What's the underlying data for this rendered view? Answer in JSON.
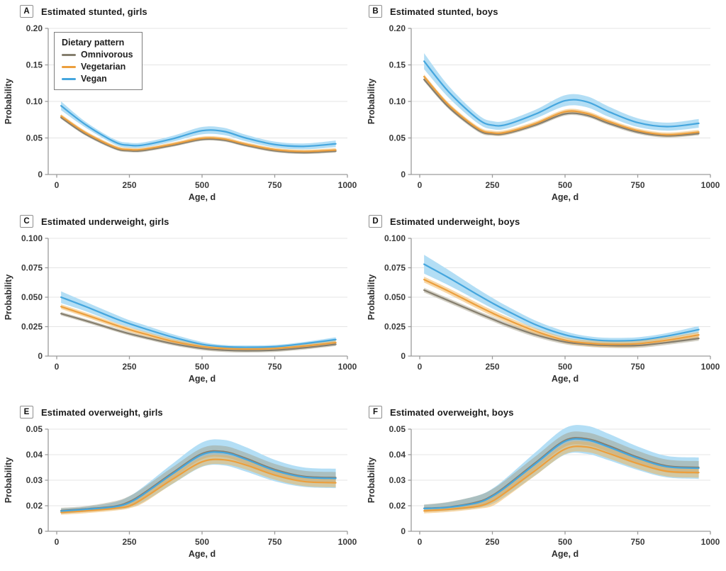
{
  "legend": {
    "title": "Dietary pattern",
    "items": [
      {
        "label": "Omnivorous",
        "color": "#857E6E"
      },
      {
        "label": "Vegetarian",
        "color": "#EC9F3D"
      },
      {
        "label": "Vegan",
        "color": "#45A6DE"
      }
    ]
  },
  "colors": {
    "omnivorous_line": "#857E6E",
    "omnivorous_band": "rgba(160,152,128,0.45)",
    "vegetarian_line": "#EC9F3D",
    "vegetarian_band": "rgba(242,178,82,0.5)",
    "vegan_line": "#45A6DE",
    "vegan_band": "#B3DEF5",
    "axis": "#9c9c9c",
    "grid": "#e4e4e4"
  },
  "chart_data": [
    {
      "letter": "A",
      "title": "Estimated stunted, girls",
      "type": "line",
      "xlabel": "Age, d",
      "ylabel": "Probability",
      "xlim": [
        0,
        1000
      ],
      "xticks": [
        0,
        250,
        500,
        750,
        1000
      ],
      "xtick_labels": [
        "0",
        "250",
        "500",
        "750",
        "1000"
      ],
      "yticks": [
        0,
        0.05,
        0.1,
        0.15,
        0.2
      ],
      "ytick_labels": [
        "0",
        "0.05",
        "0.10",
        "0.15",
        "0.20"
      ],
      "x": [
        15,
        100,
        200,
        250,
        300,
        400,
        500,
        575,
        650,
        750,
        850,
        960
      ],
      "series": [
        {
          "name": "Omnivorous",
          "y": [
            0.078,
            0.055,
            0.036,
            0.0325,
            0.033,
            0.04,
            0.048,
            0.047,
            0.04,
            0.0325,
            0.03,
            0.032
          ],
          "ci": 0.002
        },
        {
          "name": "Vegetarian",
          "y": [
            0.08,
            0.057,
            0.0375,
            0.034,
            0.0345,
            0.0415,
            0.0495,
            0.0485,
            0.0415,
            0.034,
            0.0315,
            0.0335
          ],
          "ci": 0.0025
        },
        {
          "name": "Vegan",
          "y": [
            0.094,
            0.068,
            0.0445,
            0.04,
            0.0405,
            0.049,
            0.06,
            0.059,
            0.05,
            0.041,
            0.0385,
            0.042
          ],
          "ci": [
            0.006,
            0.004,
            0.0035,
            0.0035,
            0.0035,
            0.004,
            0.005,
            0.005,
            0.0045,
            0.004,
            0.004,
            0.0045
          ]
        }
      ],
      "legend_position": "upper-left"
    },
    {
      "letter": "B",
      "title": "Estimated stunted, boys",
      "type": "line",
      "xlabel": "Age, d",
      "ylabel": "Probability",
      "xlim": [
        0,
        1000
      ],
      "xticks": [
        0,
        250,
        500,
        750,
        1000
      ],
      "xtick_labels": [
        "0",
        "250",
        "500",
        "750",
        "1000"
      ],
      "yticks": [
        0,
        0.05,
        0.1,
        0.15,
        0.2
      ],
      "ytick_labels": [
        "0",
        "0.05",
        "0.10",
        "0.15",
        "0.20"
      ],
      "x": [
        15,
        100,
        200,
        250,
        300,
        400,
        500,
        575,
        650,
        750,
        850,
        960
      ],
      "series": [
        {
          "name": "Omnivorous",
          "y": [
            0.13,
            0.092,
            0.061,
            0.0555,
            0.0565,
            0.068,
            0.083,
            0.081,
            0.07,
            0.058,
            0.053,
            0.056
          ],
          "ci": 0.0025
        },
        {
          "name": "Vegetarian",
          "y": [
            0.134,
            0.095,
            0.063,
            0.057,
            0.058,
            0.07,
            0.086,
            0.0835,
            0.0725,
            0.06,
            0.0545,
            0.058
          ],
          "ci": 0.003
        },
        {
          "name": "Vegan",
          "y": [
            0.155,
            0.113,
            0.076,
            0.0675,
            0.0685,
            0.083,
            0.101,
            0.0995,
            0.086,
            0.071,
            0.0655,
            0.07
          ],
          "ci": [
            0.011,
            0.008,
            0.006,
            0.0055,
            0.0055,
            0.006,
            0.0075,
            0.0075,
            0.007,
            0.006,
            0.0055,
            0.006
          ]
        }
      ]
    },
    {
      "letter": "C",
      "title": "Estimated underweight, girls",
      "type": "line",
      "xlabel": "Age, d",
      "ylabel": "Probability",
      "xlim": [
        0,
        1000
      ],
      "xticks": [
        0,
        250,
        500,
        750,
        1000
      ],
      "xtick_labels": [
        "0",
        "250",
        "500",
        "750",
        "1000"
      ],
      "yticks": [
        0,
        0.025,
        0.05,
        0.075,
        0.1
      ],
      "ytick_labels": [
        "0",
        "0.025",
        "0.050",
        "0.075",
        "0.100"
      ],
      "x": [
        15,
        100,
        200,
        250,
        300,
        400,
        500,
        575,
        650,
        750,
        850,
        960
      ],
      "series": [
        {
          "name": "Omnivorous",
          "y": [
            0.036,
            0.03,
            0.0225,
            0.019,
            0.016,
            0.0105,
            0.0065,
            0.005,
            0.0045,
            0.005,
            0.007,
            0.01
          ],
          "ci": 0.0015
        },
        {
          "name": "Vegetarian",
          "y": [
            0.042,
            0.035,
            0.0265,
            0.0225,
            0.019,
            0.0125,
            0.008,
            0.0065,
            0.006,
            0.0065,
            0.0085,
            0.0115
          ],
          "ci": 0.002
        },
        {
          "name": "Vegan",
          "y": [
            0.05,
            0.042,
            0.032,
            0.0275,
            0.0235,
            0.016,
            0.01,
            0.008,
            0.0075,
            0.008,
            0.0105,
            0.014
          ],
          "ci": [
            0.005,
            0.004,
            0.0035,
            0.003,
            0.003,
            0.0025,
            0.002,
            0.0015,
            0.0015,
            0.0015,
            0.0015,
            0.002
          ]
        }
      ]
    },
    {
      "letter": "D",
      "title": "Estimated underweight, boys",
      "type": "line",
      "xlabel": "Age, d",
      "ylabel": "Probability",
      "xlim": [
        0,
        1000
      ],
      "xticks": [
        0,
        250,
        500,
        750,
        1000
      ],
      "xtick_labels": [
        "0",
        "250",
        "500",
        "750",
        "1000"
      ],
      "yticks": [
        0,
        0.025,
        0.05,
        0.075,
        0.1
      ],
      "ytick_labels": [
        "0",
        "0.025",
        "0.050",
        "0.075",
        "0.100"
      ],
      "x": [
        15,
        100,
        200,
        250,
        300,
        400,
        500,
        575,
        650,
        750,
        850,
        960
      ],
      "series": [
        {
          "name": "Omnivorous",
          "y": [
            0.056,
            0.047,
            0.0365,
            0.0315,
            0.0265,
            0.018,
            0.012,
            0.01,
            0.009,
            0.009,
            0.0115,
            0.015
          ],
          "ci": 0.002
        },
        {
          "name": "Vegetarian",
          "y": [
            0.065,
            0.055,
            0.0425,
            0.0365,
            0.031,
            0.021,
            0.0135,
            0.011,
            0.01,
            0.0105,
            0.0135,
            0.018
          ],
          "ci": 0.0025
        },
        {
          "name": "Vegan",
          "y": [
            0.078,
            0.0665,
            0.052,
            0.045,
            0.0385,
            0.0265,
            0.018,
            0.0145,
            0.013,
            0.0135,
            0.017,
            0.0225
          ],
          "ci": [
            0.008,
            0.0065,
            0.005,
            0.0045,
            0.004,
            0.0035,
            0.003,
            0.0025,
            0.0025,
            0.0025,
            0.0025,
            0.003
          ]
        }
      ]
    },
    {
      "letter": "E",
      "title": "Estimated overweight, girls",
      "type": "line",
      "xlabel": "Age, d",
      "ylabel": "Probability",
      "xlim": [
        0,
        1000
      ],
      "xticks": [
        0,
        250,
        500,
        750,
        1000
      ],
      "xtick_labels": [
        "0",
        "250",
        "500",
        "750",
        "1000"
      ],
      "yticks": [
        0,
        0.02,
        0.03,
        0.04,
        0.05
      ],
      "ytick_labels": [
        "0",
        "0.02",
        "0.03",
        "0.04",
        "0.05"
      ],
      "x": [
        15,
        100,
        200,
        250,
        300,
        400,
        500,
        575,
        650,
        750,
        850,
        960
      ],
      "series": [
        {
          "name": "Omnivorous",
          "y": [
            0.0162,
            0.0175,
            0.0196,
            0.0216,
            0.025,
            0.033,
            0.0404,
            0.0412,
            0.0386,
            0.0342,
            0.0315,
            0.031
          ],
          "ci": 0.0022
        },
        {
          "name": "Vegetarian",
          "y": [
            0.0148,
            0.016,
            0.018,
            0.0198,
            0.023,
            0.0305,
            0.0372,
            0.038,
            0.036,
            0.032,
            0.0295,
            0.029
          ],
          "ci": 0.0018
        },
        {
          "name": "Vegan",
          "y": [
            0.0158,
            0.0172,
            0.0192,
            0.0212,
            0.0246,
            0.0326,
            0.04,
            0.0408,
            0.0382,
            0.0338,
            0.0312,
            0.0307
          ],
          "ci": [
            0.002,
            0.002,
            0.0022,
            0.0025,
            0.003,
            0.004,
            0.0048,
            0.005,
            0.0048,
            0.0042,
            0.0038,
            0.0038
          ]
        }
      ]
    },
    {
      "letter": "F",
      "title": "Estimated overweight, boys",
      "type": "line",
      "xlabel": "Age, d",
      "ylabel": "Probability",
      "xlim": [
        0,
        1000
      ],
      "xticks": [
        0,
        250,
        500,
        750,
        1000
      ],
      "xtick_labels": [
        "0",
        "250",
        "500",
        "750",
        "1000"
      ],
      "yticks": [
        0,
        0.02,
        0.03,
        0.04,
        0.05
      ],
      "ytick_labels": [
        "0",
        "0.02",
        "0.03",
        "0.04",
        "0.05"
      ],
      "x": [
        15,
        100,
        200,
        250,
        300,
        400,
        500,
        575,
        650,
        750,
        850,
        960
      ],
      "series": [
        {
          "name": "Omnivorous",
          "y": [
            0.018,
            0.019,
            0.0215,
            0.024,
            0.028,
            0.037,
            0.0456,
            0.0462,
            0.0435,
            0.039,
            0.0356,
            0.035
          ],
          "ci": 0.0025
        },
        {
          "name": "Vegetarian",
          "y": [
            0.016,
            0.0172,
            0.0196,
            0.0218,
            0.0256,
            0.034,
            0.0422,
            0.043,
            0.0405,
            0.0365,
            0.0335,
            0.033
          ],
          "ci": 0.002
        },
        {
          "name": "Vegan",
          "y": [
            0.0178,
            0.0188,
            0.0212,
            0.0237,
            0.0276,
            0.0366,
            0.0452,
            0.0458,
            0.043,
            0.0386,
            0.0353,
            0.0347
          ],
          "ci": [
            0.0025,
            0.0026,
            0.0028,
            0.003,
            0.0035,
            0.0045,
            0.0052,
            0.0055,
            0.0052,
            0.0046,
            0.0042,
            0.0042
          ]
        }
      ]
    }
  ]
}
